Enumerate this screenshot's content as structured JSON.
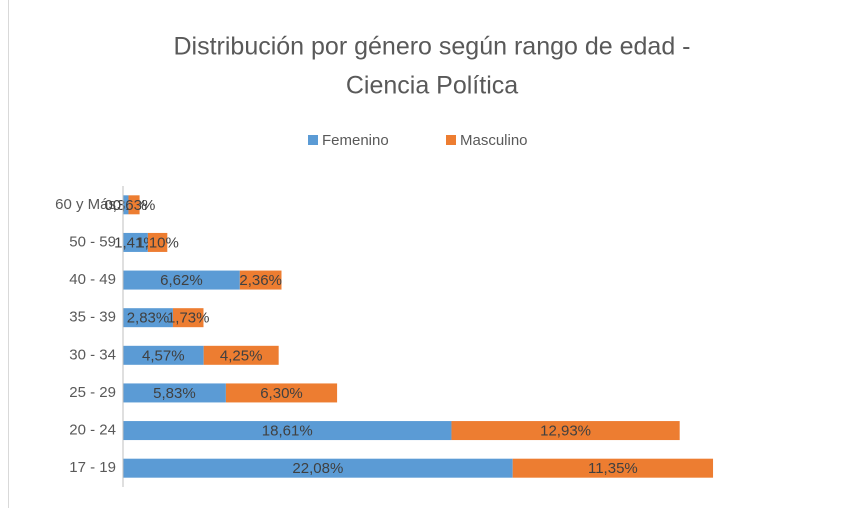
{
  "chart_data": {
    "type": "stacked-barh",
    "title": [
      "Distribución por género según rango de edad -",
      "Ciencia Política"
    ],
    "categories": [
      "60 y Más",
      "50 - 59",
      "40 - 49",
      "35 - 39",
      "30 - 34",
      "25 - 29",
      "20 - 24",
      "17 - 19"
    ],
    "series": [
      {
        "name": "Femenino",
        "color": "#5b9bd5",
        "values": [
          0.31,
          1.41,
          6.62,
          2.83,
          4.57,
          5.83,
          18.61,
          22.08
        ],
        "value_labels": [
          "0,31%",
          "1,41%",
          "6,62%",
          "2,83%",
          "4,57%",
          "5,83%",
          "18,61%",
          "22,08%"
        ]
      },
      {
        "name": "Masculino",
        "color": "#ed7d31",
        "values": [
          0.63,
          1.1,
          2.36,
          1.73,
          4.25,
          6.3,
          12.93,
          11.35
        ],
        "value_labels": [
          "0,63%",
          "1,10%",
          "2,36%",
          "1,73%",
          "4,25%",
          "6,30%",
          "12,93%",
          "11,35%"
        ]
      }
    ],
    "xlim": [
      0,
      40
    ],
    "legend": "top"
  }
}
